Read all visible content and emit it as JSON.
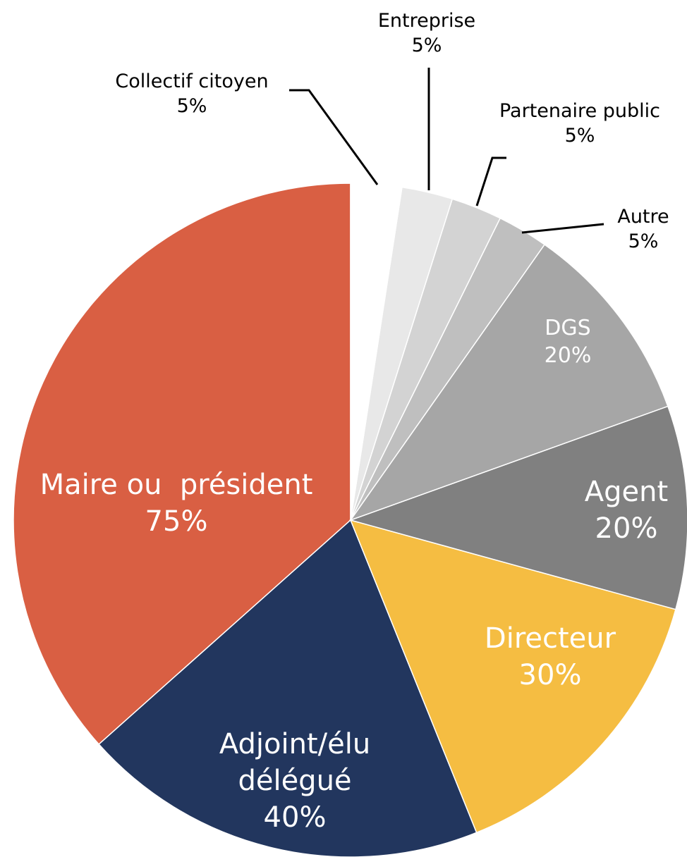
{
  "chart_data": {
    "type": "pie",
    "categories": [
      "Collectif citoyen",
      "Entreprise",
      "Partenaire public",
      "Autre",
      "DGS",
      "Agent",
      "Directeur",
      "Adjoint/élu délégué",
      "Maire ou  président"
    ],
    "values": [
      5,
      5,
      5,
      5,
      20,
      20,
      30,
      40,
      75
    ],
    "value_labels": [
      "5%",
      "5%",
      "5%",
      "5%",
      "20%",
      "20%",
      "30%",
      "40%",
      "75%"
    ],
    "colors": [
      "#ffffff",
      "#e8e8e8",
      "#d3d3d3",
      "#bfbfbf",
      "#a6a6a6",
      "#808080",
      "#f5bd42",
      "#22365e",
      "#d95f43"
    ]
  }
}
